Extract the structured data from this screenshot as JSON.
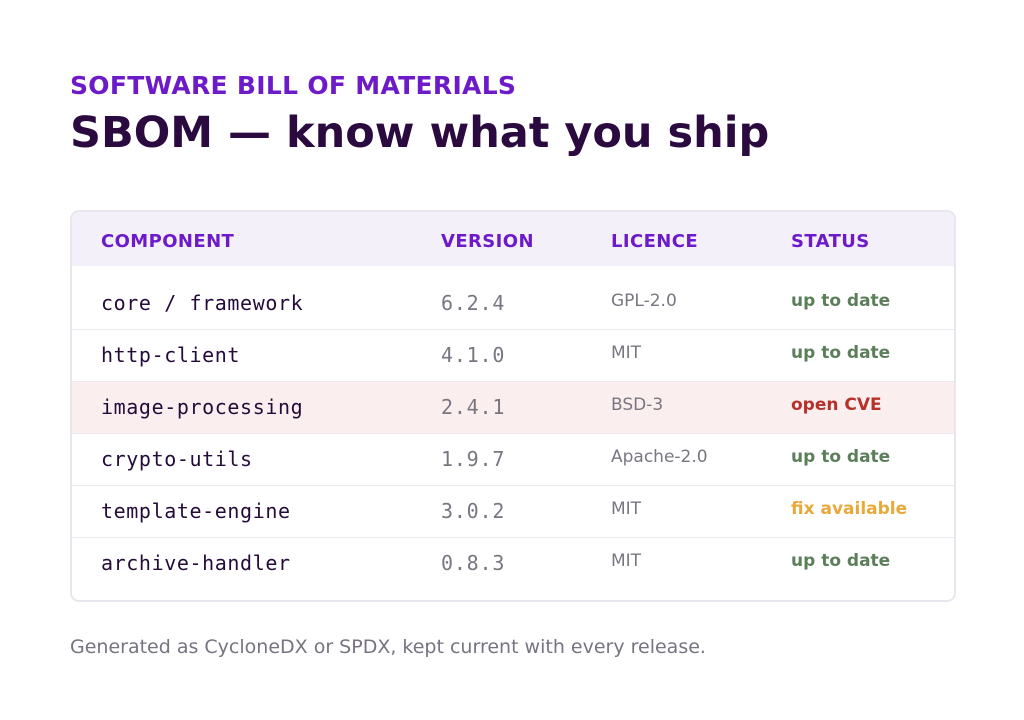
{
  "header": {
    "eyebrow": "SOFTWARE BILL OF MATERIALS",
    "title": "SBOM — know what you ship"
  },
  "table": {
    "columns": [
      "COMPONENT",
      "VERSION",
      "LICENCE",
      "STATUS"
    ],
    "rows": [
      {
        "component": "core / framework",
        "version": "6.2.4",
        "licence": "GPL-2.0",
        "status": "up to date",
        "status_color": "#5b7f58"
      },
      {
        "component": "http-client",
        "version": "4.1.0",
        "licence": "MIT",
        "status": "up to date",
        "status_color": "#5b7f58"
      },
      {
        "component": "image-processing",
        "version": "2.4.1",
        "licence": "BSD-3",
        "status": "open CVE",
        "status_color": "#b5322a",
        "highlight": true
      },
      {
        "component": "crypto-utils",
        "version": "1.9.7",
        "licence": "Apache-2.0",
        "status": "up to date",
        "status_color": "#5b7f58"
      },
      {
        "component": "template-engine",
        "version": "3.0.2",
        "licence": "MIT",
        "status": "fix available",
        "status_color": "#e8a93a"
      },
      {
        "component": "archive-handler",
        "version": "0.8.3",
        "licence": "MIT",
        "status": "up to date",
        "status_color": "#5b7f58"
      }
    ]
  },
  "footer": {
    "note": "Generated as CycloneDX or SPDX, kept current with every release."
  },
  "colors": {
    "accent": "#6d1bc9",
    "title": "#2a0a3f",
    "header_bg": "#f3f0fa",
    "alert_row_bg": "#faefee"
  }
}
